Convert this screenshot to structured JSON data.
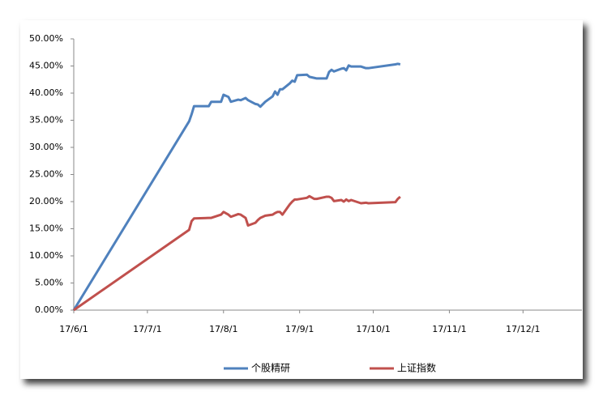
{
  "chart_data": {
    "type": "line",
    "x": [
      "2017-06-01",
      "2017-07-18",
      "2017-07-19",
      "2017-07-20",
      "2017-07-26",
      "2017-07-27",
      "2017-07-31",
      "2017-08-01",
      "2017-08-03",
      "2017-08-04",
      "2017-08-07",
      "2017-08-08",
      "2017-08-10",
      "2017-08-11",
      "2017-08-14",
      "2017-08-15",
      "2017-08-16",
      "2017-08-18",
      "2017-08-21",
      "2017-08-22",
      "2017-08-23",
      "2017-08-24",
      "2017-08-25",
      "2017-08-28",
      "2017-08-29",
      "2017-08-30",
      "2017-08-31",
      "2017-09-04",
      "2017-09-05",
      "2017-09-07",
      "2017-09-08",
      "2017-09-12",
      "2017-09-13",
      "2017-09-14",
      "2017-09-15",
      "2017-09-18",
      "2017-09-19",
      "2017-09-20",
      "2017-09-21",
      "2017-09-22",
      "2017-09-26",
      "2017-09-28",
      "2017-09-29",
      "2017-10-10",
      "2017-10-11",
      "2017-10-12"
    ],
    "series": [
      {
        "name": "个股精研",
        "color": "#4f81bd",
        "values": [
          0,
          34.8,
          36.1,
          37.6,
          37.6,
          38.4,
          38.4,
          39.7,
          39.3,
          38.4,
          38.8,
          38.7,
          39.1,
          38.7,
          38.0,
          37.9,
          37.5,
          38.4,
          39.4,
          40.3,
          39.7,
          40.7,
          40.7,
          41.8,
          42.3,
          42.1,
          43.3,
          43.4,
          43.0,
          42.8,
          42.7,
          42.7,
          43.9,
          44.3,
          44.0,
          44.5,
          44.6,
          44.2,
          45.1,
          44.9,
          44.9,
          44.6,
          44.6,
          45.3,
          45.4,
          45.3
        ]
      },
      {
        "name": "上证指数",
        "color": "#c0504d",
        "values": [
          0,
          14.8,
          16.4,
          16.9,
          17.0,
          17.0,
          17.6,
          18.1,
          17.6,
          17.2,
          17.7,
          17.6,
          17.0,
          15.6,
          16.1,
          16.6,
          17.0,
          17.4,
          17.6,
          17.9,
          18.1,
          18.1,
          17.6,
          19.5,
          20.0,
          20.4,
          20.4,
          20.7,
          21.0,
          20.5,
          20.5,
          20.9,
          20.9,
          20.7,
          20.1,
          20.3,
          20.0,
          20.4,
          20.1,
          20.3,
          19.7,
          19.8,
          19.7,
          19.9,
          20.5,
          20.9
        ]
      }
    ],
    "xlim": [
      "2017-06-01",
      "2017-12-25"
    ],
    "xticks": [
      {
        "value": "2017-06-01",
        "label": "17/6/1"
      },
      {
        "value": "2017-07-01",
        "label": "17/7/1"
      },
      {
        "value": "2017-08-01",
        "label": "17/8/1"
      },
      {
        "value": "2017-09-01",
        "label": "17/9/1"
      },
      {
        "value": "2017-10-01",
        "label": "17/10/1"
      },
      {
        "value": "2017-11-01",
        "label": "17/11/1"
      },
      {
        "value": "2017-12-01",
        "label": "17/12/1"
      }
    ],
    "ylim": [
      0,
      50
    ],
    "yticks": [
      {
        "value": 0,
        "label": "0.00%"
      },
      {
        "value": 5,
        "label": "5.00%"
      },
      {
        "value": 10,
        "label": "10.00%"
      },
      {
        "value": 15,
        "label": "15.00%"
      },
      {
        "value": 20,
        "label": "20.00%"
      },
      {
        "value": 25,
        "label": "25.00%"
      },
      {
        "value": 30,
        "label": "30.00%"
      },
      {
        "value": 35,
        "label": "35.00%"
      },
      {
        "value": 40,
        "label": "40.00%"
      },
      {
        "value": 45,
        "label": "45.00%"
      },
      {
        "value": 50,
        "label": "50.00%"
      }
    ],
    "grid": false,
    "legend": "bottom"
  }
}
